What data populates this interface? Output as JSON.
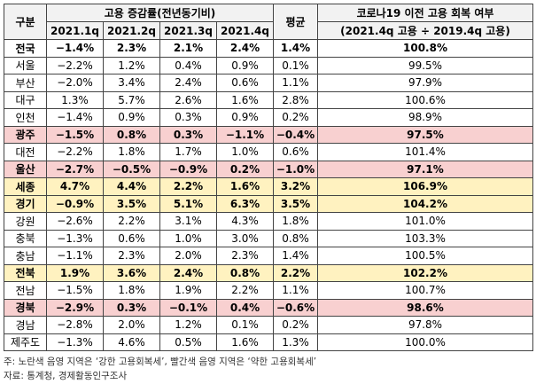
{
  "table": {
    "header": {
      "region": "구분",
      "growth": "고용 증감률(전년동기비)",
      "quarters": [
        "2021.1q",
        "2021.2q",
        "2021.3q",
        "2021.4q"
      ],
      "average": "평균",
      "recovery": "코로나19 이전 고용 회복 여부",
      "recovery_formula": "(2021.4q 고용 ÷ 2019.4q 고용)",
      "fill": "#f2f2f2"
    },
    "rows": [
      {
        "cells": [
          "전국",
          "−1.4%",
          "2.3%",
          "2.1%",
          "2.4%",
          "1.4%",
          "100.8%"
        ],
        "fill": "#ffffff",
        "bold": true
      },
      {
        "cells": [
          "서울",
          "−2.2%",
          "1.2%",
          "0.4%",
          "0.9%",
          "0.1%",
          "99.5%"
        ],
        "fill": "#ffffff",
        "bold": false
      },
      {
        "cells": [
          "부산",
          "−2.0%",
          "3.4%",
          "2.4%",
          "0.6%",
          "1.1%",
          "97.9%"
        ],
        "fill": "#ffffff",
        "bold": false
      },
      {
        "cells": [
          "대구",
          "1.3%",
          "5.7%",
          "2.6%",
          "1.6%",
          "2.8%",
          "100.6%"
        ],
        "fill": "#ffffff",
        "bold": false
      },
      {
        "cells": [
          "인천",
          "−1.4%",
          "0.9%",
          "0.3%",
          "0.9%",
          "0.2%",
          "98.9%"
        ],
        "fill": "#ffffff",
        "bold": false
      },
      {
        "cells": [
          "광주",
          "−1.5%",
          "0.8%",
          "0.3%",
          "−1.1%",
          "−0.4%",
          "97.5%"
        ],
        "fill": "#f8d0d0",
        "bold": true
      },
      {
        "cells": [
          "대전",
          "−2.2%",
          "1.8%",
          "1.7%",
          "1.0%",
          "0.6%",
          "101.4%"
        ],
        "fill": "#ffffff",
        "bold": false
      },
      {
        "cells": [
          "울산",
          "−2.7%",
          "−0.5%",
          "−0.9%",
          "0.2%",
          "−1.0%",
          "97.1%"
        ],
        "fill": "#f8d0d0",
        "bold": true
      },
      {
        "cells": [
          "세종",
          "4.7%",
          "4.4%",
          "2.2%",
          "1.6%",
          "3.2%",
          "106.9%"
        ],
        "fill": "#fff2c0",
        "bold": true
      },
      {
        "cells": [
          "경기",
          "−0.9%",
          "3.5%",
          "5.1%",
          "6.3%",
          "3.5%",
          "104.2%"
        ],
        "fill": "#fff2c0",
        "bold": true
      },
      {
        "cells": [
          "강원",
          "−2.6%",
          "2.2%",
          "3.1%",
          "4.3%",
          "1.8%",
          "101.0%"
        ],
        "fill": "#ffffff",
        "bold": false
      },
      {
        "cells": [
          "충북",
          "−1.3%",
          "0.6%",
          "1.0%",
          "3.0%",
          "0.8%",
          "103.3%"
        ],
        "fill": "#ffffff",
        "bold": false
      },
      {
        "cells": [
          "충남",
          "−1.1%",
          "2.3%",
          "2.0%",
          "2.3%",
          "1.4%",
          "100.5%"
        ],
        "fill": "#ffffff",
        "bold": false
      },
      {
        "cells": [
          "전북",
          "1.9%",
          "3.6%",
          "2.4%",
          "0.8%",
          "2.2%",
          "102.2%"
        ],
        "fill": "#fff2c0",
        "bold": true
      },
      {
        "cells": [
          "전남",
          "−1.5%",
          "1.8%",
          "1.9%",
          "2.2%",
          "1.1%",
          "100.7%"
        ],
        "fill": "#ffffff",
        "bold": false
      },
      {
        "cells": [
          "경북",
          "−2.9%",
          "0.3%",
          "−0.1%",
          "0.4%",
          "−0.6%",
          "98.6%"
        ],
        "fill": "#f8d0d0",
        "bold": true
      },
      {
        "cells": [
          "경남",
          "−2.8%",
          "2.0%",
          "1.2%",
          "0.1%",
          "0.2%",
          "97.8%"
        ],
        "fill": "#ffffff",
        "bold": false
      },
      {
        "cells": [
          "제주도",
          "−1.3%",
          "4.6%",
          "0.5%",
          "1.6%",
          "1.3%",
          "100.0%"
        ],
        "fill": "#ffffff",
        "bold": false
      }
    ]
  },
  "notes": [
    "주: 노란색 음영 지역은 ‘강한 고용회복세’, 빨간색 음영 지역은 ‘약한 고용회복세’",
    "자료: 통계청, 경제활동인구조사"
  ]
}
